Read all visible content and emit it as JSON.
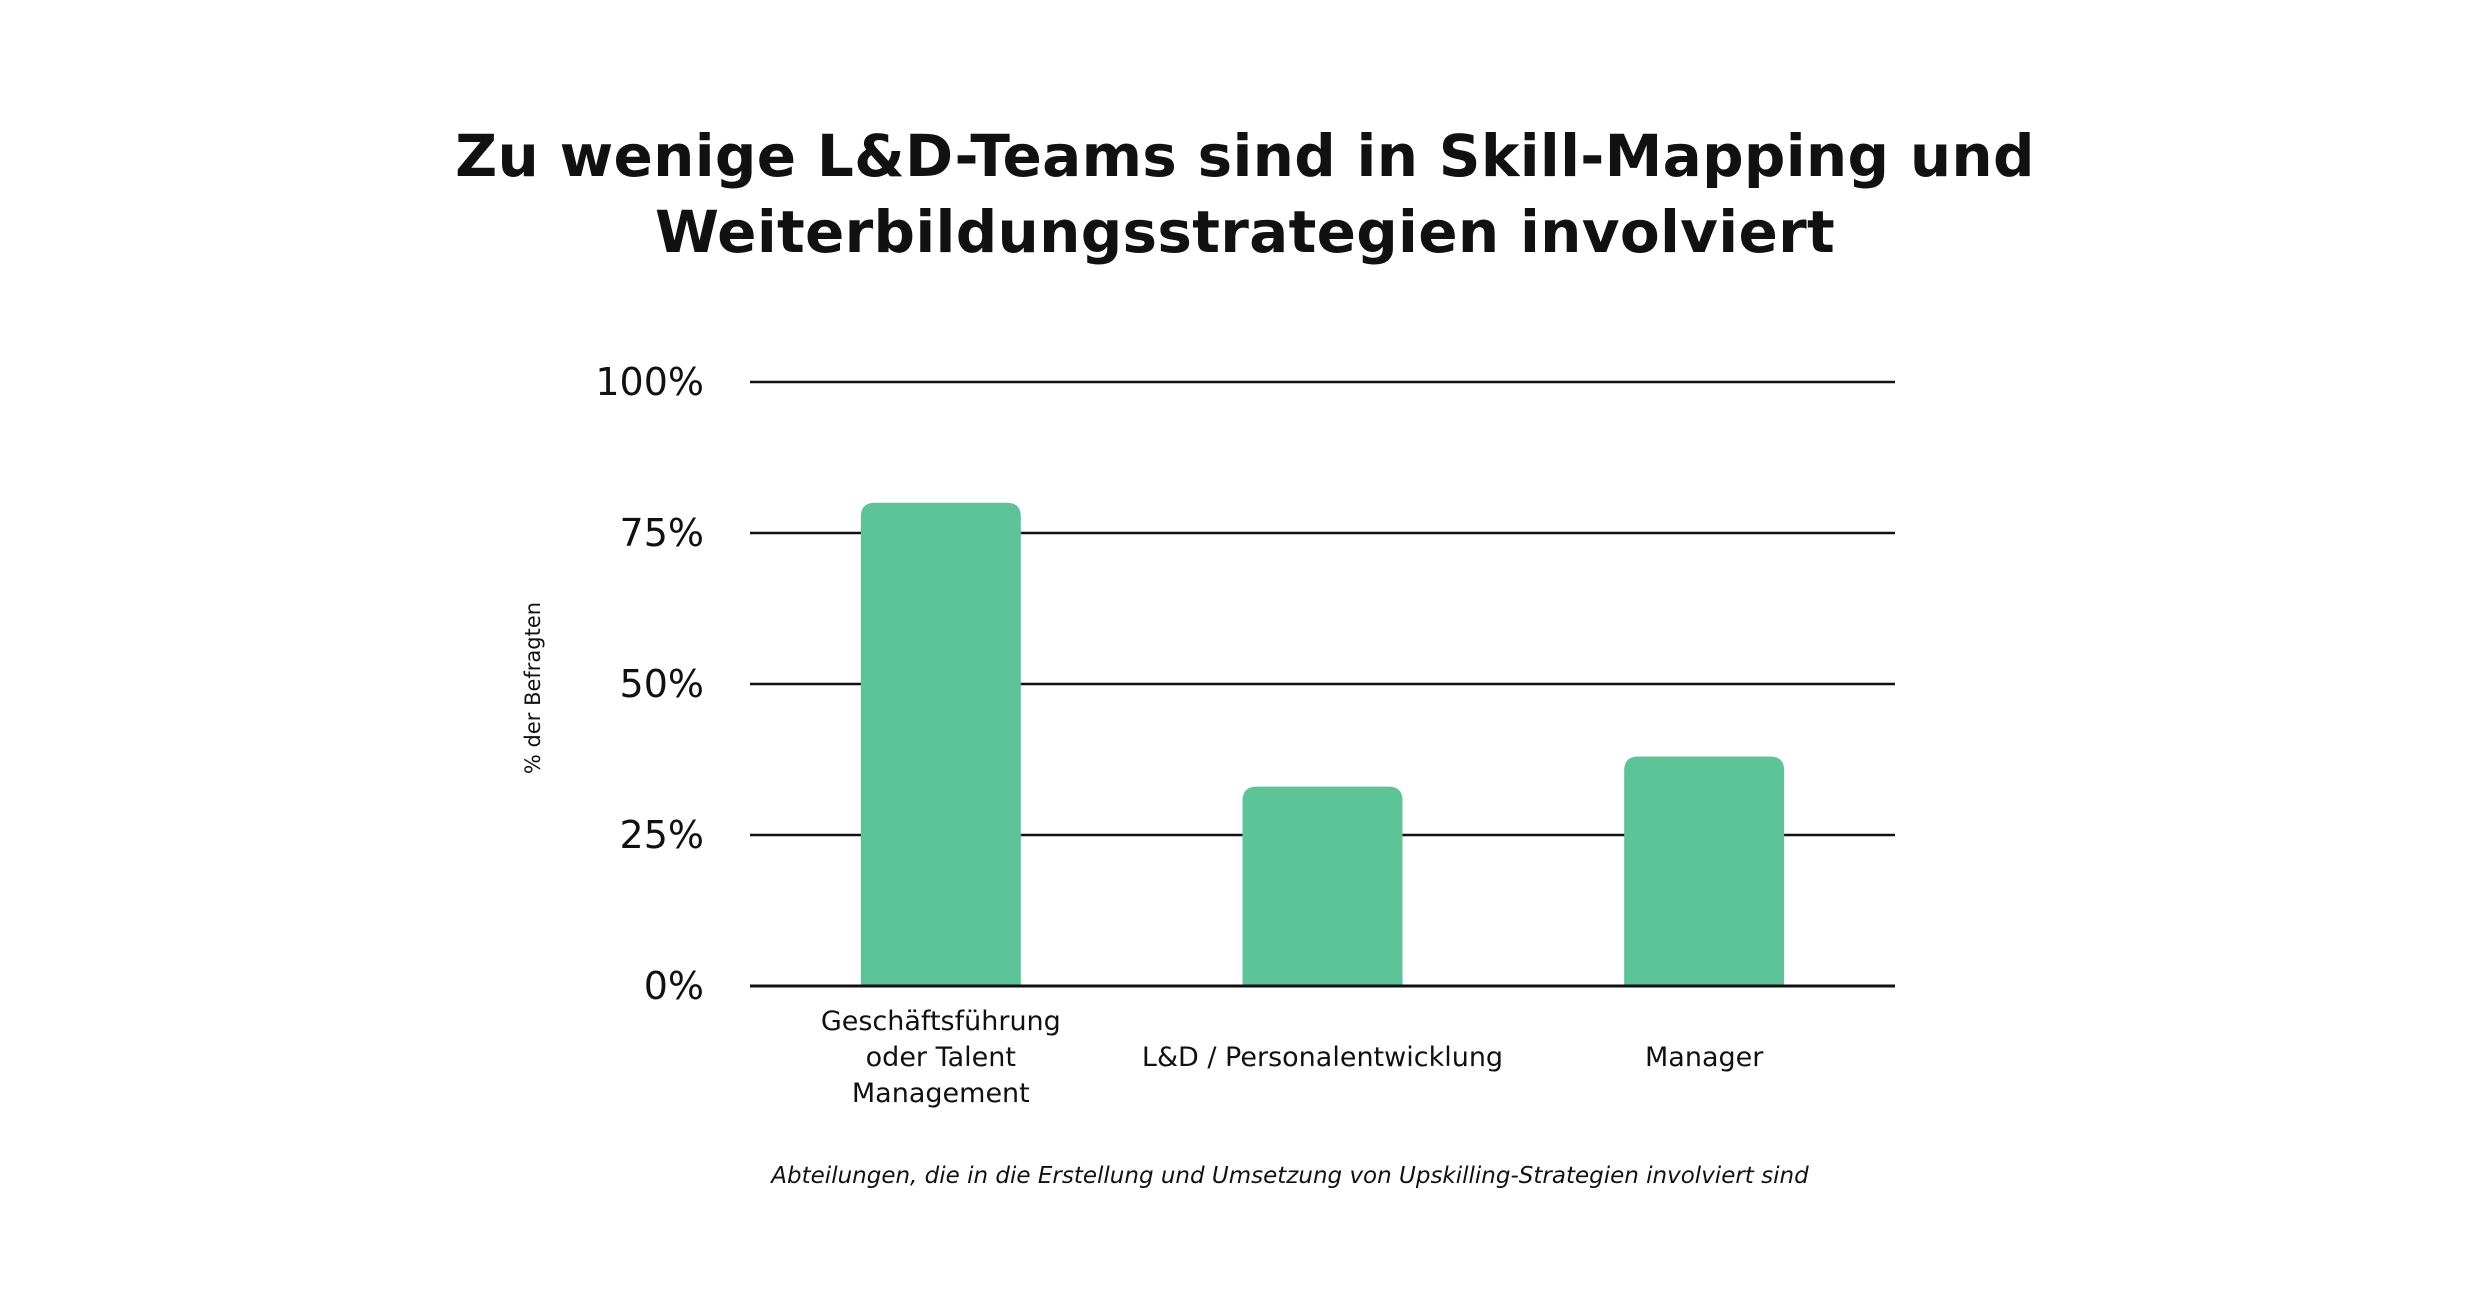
{
  "chart_data": {
    "type": "bar",
    "title_lines": [
      "Zu wenige L&D-Teams sind in Skill-Mapping und",
      "Weiterbildungsstrategien involviert"
    ],
    "categories": [
      [
        "Geschäftsführung",
        "oder Talent",
        "Management"
      ],
      [
        "L&D / Personalentwicklung"
      ],
      [
        "Manager"
      ]
    ],
    "values": [
      80,
      33,
      38
    ],
    "ylabel": "% der Befragten",
    "xlabel": "Abteilungen, die in die Erstellung und Umsetzung von Upskilling-Strategien involviert sind",
    "ylim": [
      0,
      100
    ],
    "yticks": [
      "0%",
      "25%",
      "50%",
      "75%",
      "100%"
    ],
    "grid": true,
    "bar_color": "#5dc49a"
  }
}
